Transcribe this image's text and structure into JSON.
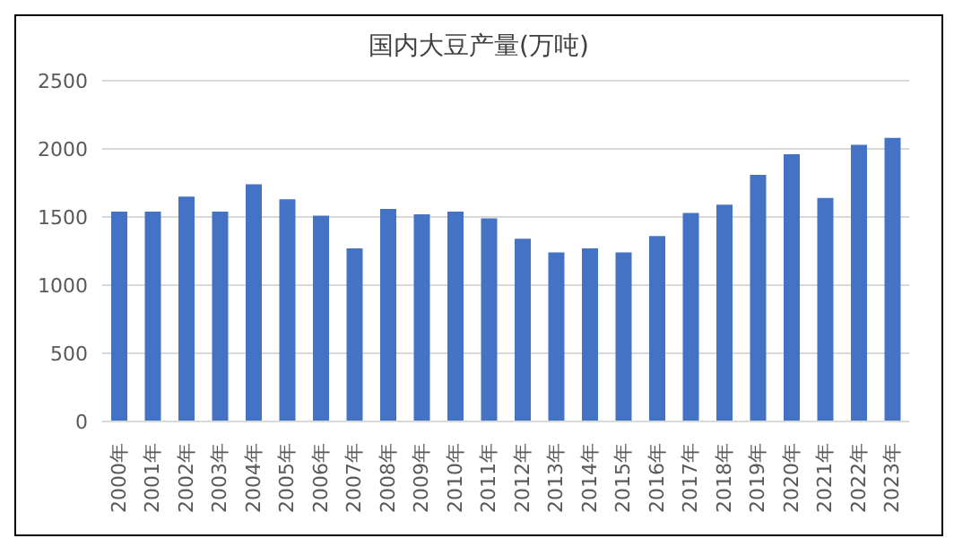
{
  "chart_data": {
    "type": "bar",
    "title": "国内大豆产量(万吨)",
    "categories": [
      "2000年",
      "2001年",
      "2002年",
      "2003年",
      "2004年",
      "2005年",
      "2006年",
      "2007年",
      "2008年",
      "2009年",
      "2010年",
      "2011年",
      "2012年",
      "2013年",
      "2014年",
      "2015年",
      "2016年",
      "2017年",
      "2018年",
      "2019年",
      "2020年",
      "2021年",
      "2022年",
      "2023年"
    ],
    "values": [
      1540,
      1540,
      1650,
      1540,
      1740,
      1630,
      1510,
      1270,
      1560,
      1520,
      1540,
      1490,
      1340,
      1240,
      1270,
      1240,
      1360,
      1530,
      1590,
      1810,
      1960,
      1640,
      2030,
      2080
    ],
    "color": "#4472c4",
    "ylim": [
      0,
      2500
    ],
    "yticks": [
      0,
      500,
      1000,
      1500,
      2000,
      2500
    ],
    "grid": "y"
  }
}
